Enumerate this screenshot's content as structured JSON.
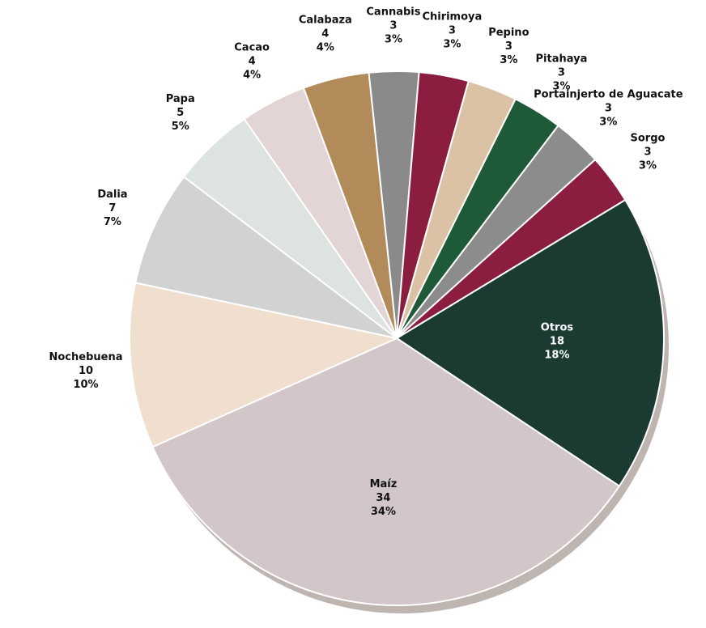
{
  "chart_data": {
    "type": "pie",
    "categories": [
      "Cannabis",
      "Chirimoya",
      "Pepino",
      "Pitahaya",
      "Portainjerto de Aguacate",
      "Sorgo",
      "Otros",
      "Maíz",
      "Nochebuena",
      "Dalia",
      "Papa",
      "Cacao",
      "Calabaza"
    ],
    "values": [
      3,
      3,
      3,
      3,
      3,
      3,
      18,
      34,
      10,
      7,
      5,
      4,
      4
    ],
    "value_labels": [
      "3%",
      "3%",
      "3%",
      "3%",
      "3%",
      "3%",
      "18%",
      "34%",
      "10%",
      "7%",
      "5%",
      "4%",
      "4%"
    ],
    "colors": [
      "#8a8a8a",
      "#8b1d3e",
      "#dcc2a4",
      "#1f5a38",
      "#8c8c8c",
      "#8b1d3e",
      "#1b3a31",
      "#d2c6c8",
      "#f0dfcf",
      "#d2d2d2",
      "#dde3df",
      "#e3d4d6",
      "#b38b5b"
    ]
  }
}
